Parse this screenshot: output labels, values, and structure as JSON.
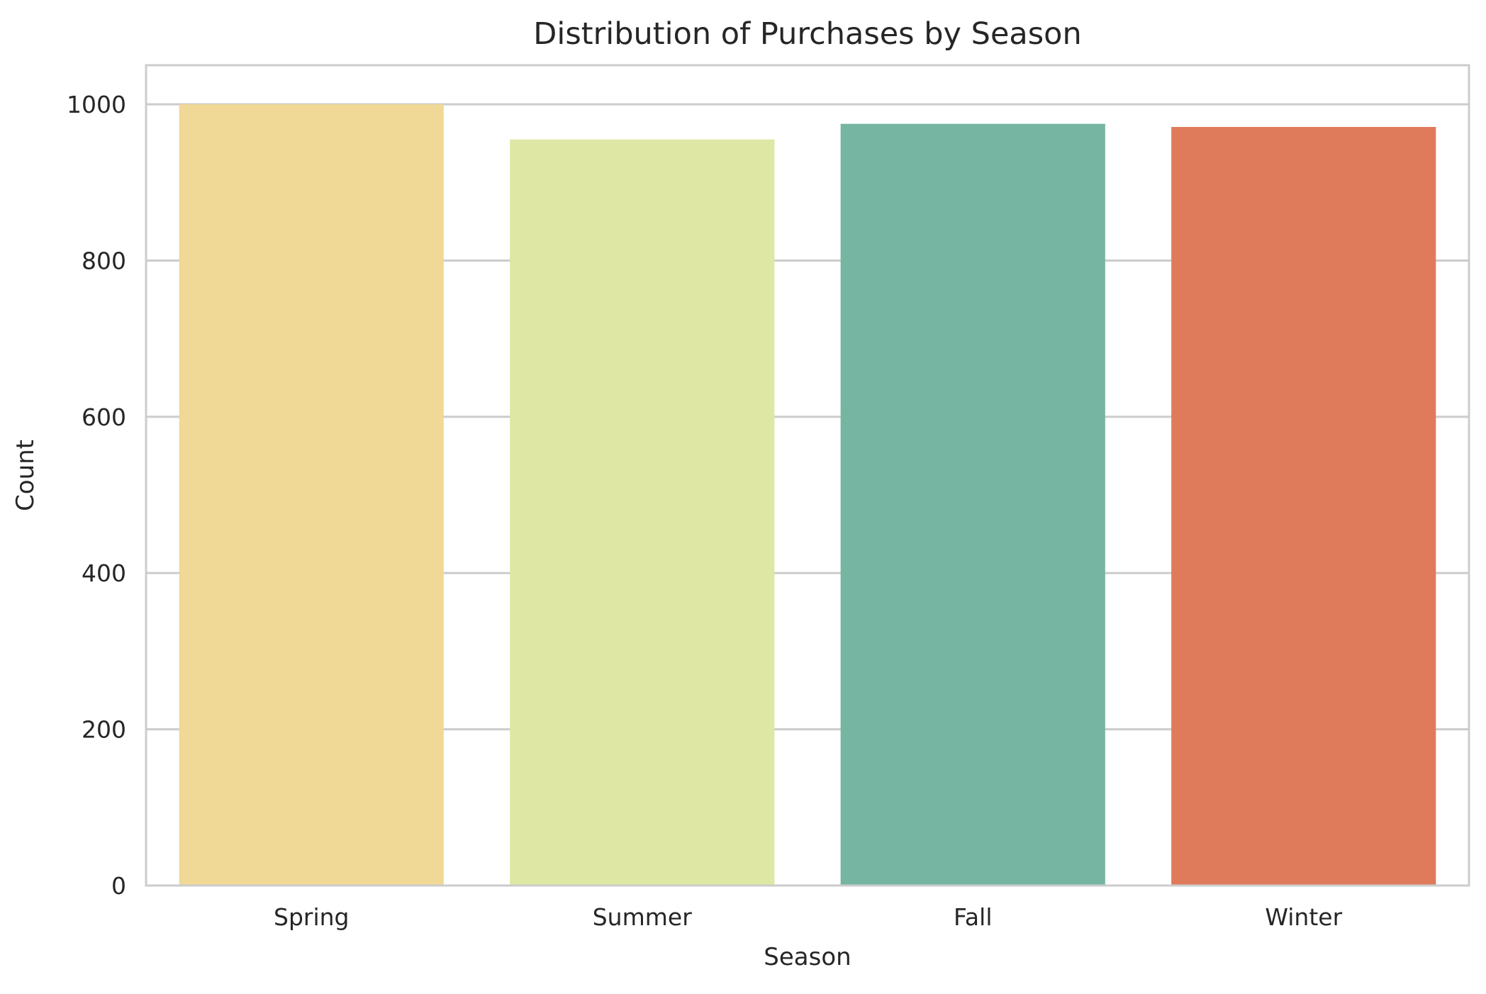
{
  "chart_data": {
    "type": "bar",
    "title": "Distribution of Purchases by Season",
    "xlabel": "Season",
    "ylabel": "Count",
    "categories": [
      "Spring",
      "Summer",
      "Fall",
      "Winter"
    ],
    "values": [
      1000,
      955,
      975,
      971
    ],
    "colors": [
      "#f0d896",
      "#dee8a4",
      "#75b5a1",
      "#df7b5b"
    ],
    "ylim": [
      0,
      1050
    ],
    "yticks": [
      0,
      200,
      400,
      600,
      800,
      1000
    ],
    "grid": true,
    "legend": "none"
  }
}
